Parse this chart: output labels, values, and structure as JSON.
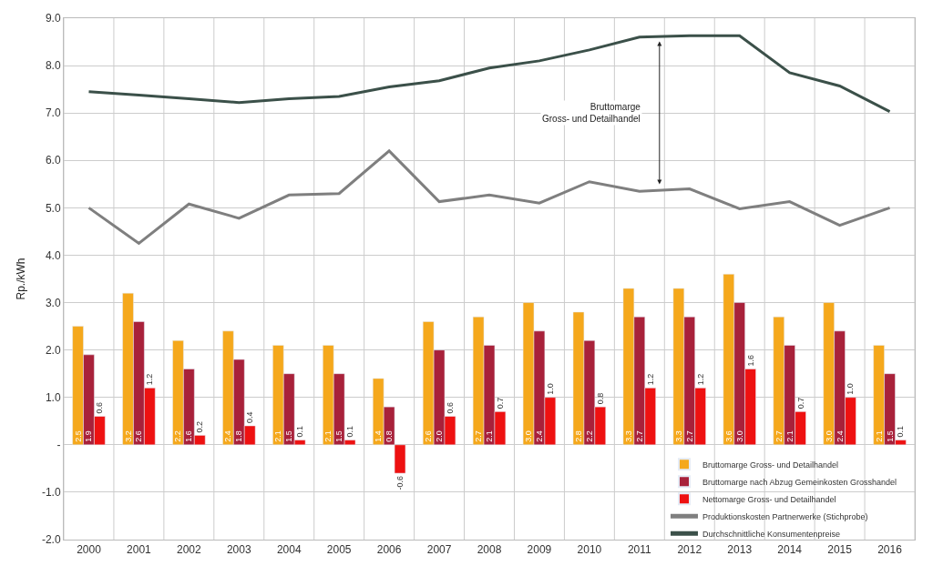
{
  "chart_data": {
    "type": "bar",
    "categories": [
      "2000",
      "2001",
      "2002",
      "2003",
      "2004",
      "2005",
      "2006",
      "2007",
      "2008",
      "2009",
      "2010",
      "2011",
      "2012",
      "2013",
      "2014",
      "2015",
      "2016"
    ],
    "ylabel": "Rp./kWh",
    "ylim": [
      -2.0,
      9.0
    ],
    "yticks": [
      {
        "value": -2,
        "label": "-2.0"
      },
      {
        "value": -1,
        "label": "-1.0"
      },
      {
        "value": 0,
        "label": "-"
      },
      {
        "value": 1,
        "label": "1.0"
      },
      {
        "value": 2,
        "label": "2.0"
      },
      {
        "value": 3,
        "label": "3.0"
      },
      {
        "value": 4,
        "label": "4.0"
      },
      {
        "value": 5,
        "label": "5.0"
      },
      {
        "value": 6,
        "label": "6.0"
      },
      {
        "value": 7,
        "label": "7.0"
      },
      {
        "value": 8,
        "label": "8.0"
      },
      {
        "value": 9,
        "label": "9.0"
      }
    ],
    "series": [
      {
        "name": "Bruttomarge Gross- und Detailhandel",
        "color": "#f5a81c",
        "values": [
          2.5,
          3.2,
          2.2,
          2.4,
          2.1,
          2.1,
          1.4,
          2.6,
          2.7,
          3.0,
          2.8,
          3.3,
          3.3,
          3.6,
          2.7,
          3.0,
          2.1
        ],
        "value_labels": [
          "2.5",
          "3.2",
          "2.2",
          "2.4",
          "2.1",
          "2.1",
          "1.4",
          "2.6",
          "2.7",
          "3.0",
          "2.8",
          "3.3",
          "3.3",
          "3.6",
          "2.7",
          "3.0",
          "2.1"
        ]
      },
      {
        "name": "Bruttomarge nach Abzug Gemeinkosten Grosshandel",
        "color": "#a8213a",
        "values": [
          1.9,
          2.6,
          1.6,
          1.8,
          1.5,
          1.5,
          0.8,
          2.0,
          2.1,
          2.4,
          2.2,
          2.7,
          2.7,
          3.0,
          2.1,
          2.4,
          1.5
        ],
        "value_labels": [
          "1.9",
          "2.6",
          "1.6",
          "1.8",
          "1.5",
          "1.5",
          "0.8",
          "2.0",
          "2.1",
          "2.4",
          "2.2",
          "2.7",
          "2.7",
          "3.0",
          "2.1",
          "2.4",
          "1.5"
        ]
      },
      {
        "name": "Nettomarge Gross- und Detailhandel",
        "color": "#ee1111",
        "values": [
          0.6,
          1.2,
          0.2,
          0.4,
          0.1,
          0.1,
          -0.6,
          0.6,
          0.7,
          1.0,
          0.8,
          1.2,
          1.2,
          1.6,
          0.7,
          1.0,
          0.1
        ],
        "value_labels": [
          "0.6",
          "1.2",
          "0.2",
          "0.4",
          "0.1",
          "0.1",
          "-0.6",
          "0.6",
          "0.7",
          "1.0",
          "0.8",
          "1.2",
          "1.2",
          "1.6",
          "0.7",
          "1.0",
          "0.1"
        ]
      },
      {
        "name": "Produktionskosten Partnerwerke (Stichprobe)",
        "type": "line",
        "color": "#7f7f7f",
        "values": [
          5.0,
          4.25,
          5.08,
          4.78,
          5.27,
          5.3,
          6.2,
          5.13,
          5.27,
          5.1,
          5.55,
          5.35,
          5.4,
          4.98,
          5.13,
          4.63,
          5.0
        ]
      },
      {
        "name": "Durchschnittliche Konsumentenpreise",
        "type": "line",
        "color": "#3b5049",
        "values": [
          7.45,
          7.38,
          7.3,
          7.22,
          7.3,
          7.35,
          7.55,
          7.68,
          7.95,
          8.1,
          8.33,
          8.6,
          8.63,
          8.63,
          7.85,
          7.57,
          7.03
        ]
      }
    ],
    "annotations": [
      "Bruttomarge\nGross- und Detailhandel"
    ],
    "grid": true,
    "legend": "bottom right",
    "marker": "none",
    "line_style": "solid"
  }
}
